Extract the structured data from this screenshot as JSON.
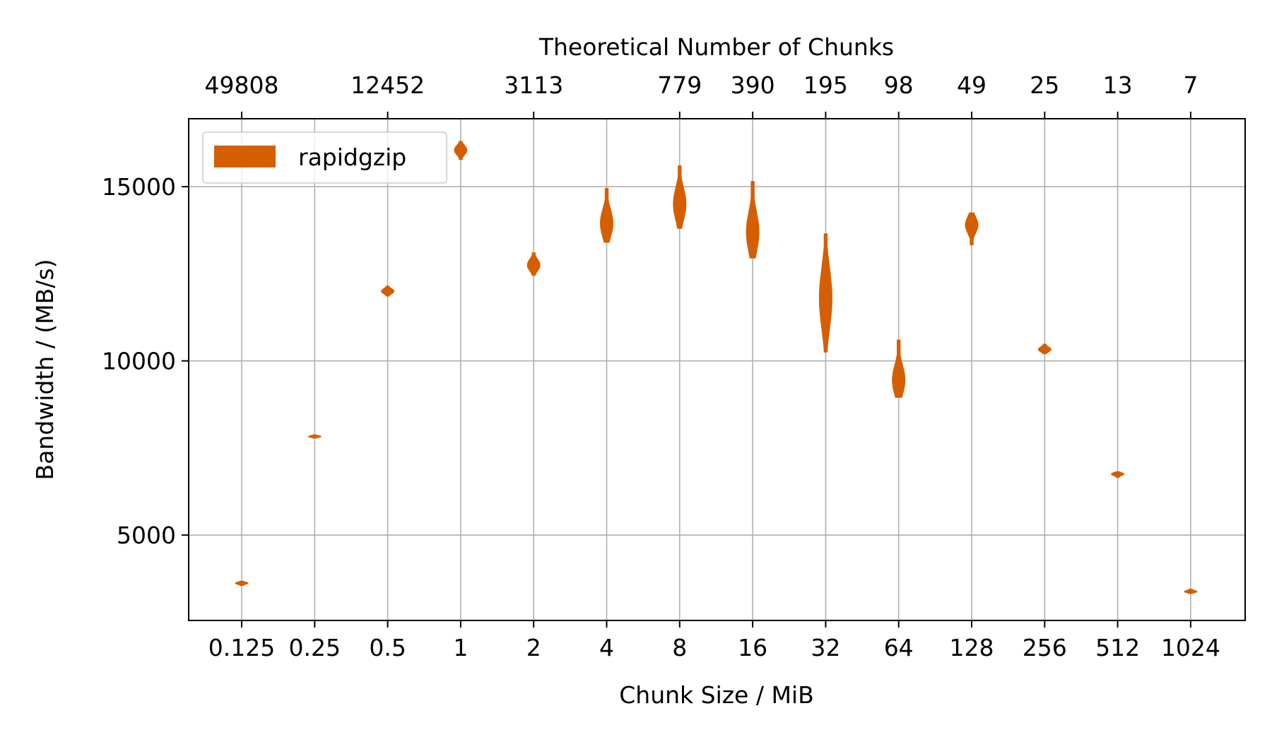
{
  "chart_data": {
    "type": "violin",
    "xlabel": "Chunk Size / MiB",
    "ylabel": "Bandwidth / (MB/s)",
    "top_xlabel": "Theoretical Number of Chunks",
    "x_scale": "log2",
    "x_ticks": [
      "0.125",
      "0.25",
      "0.5",
      "1",
      "2",
      "4",
      "8",
      "16",
      "32",
      "64",
      "128",
      "256",
      "512",
      "1024"
    ],
    "x_top_ticks": [
      {
        "at": "0.125",
        "label": "49808"
      },
      {
        "at": "0.5",
        "label": "12452"
      },
      {
        "at": "2",
        "label": "3113"
      },
      {
        "at": "8",
        "label": "779"
      },
      {
        "at": "16",
        "label": "390"
      },
      {
        "at": "32",
        "label": "195"
      },
      {
        "at": "64",
        "label": "98"
      },
      {
        "at": "128",
        "label": "49"
      },
      {
        "at": "256",
        "label": "25"
      },
      {
        "at": "512",
        "label": "13"
      },
      {
        "at": "1024",
        "label": "7"
      }
    ],
    "ylim": [
      2550,
      16950
    ],
    "y_ticks": [
      5000,
      10000,
      15000
    ],
    "grid": true,
    "legend": {
      "position": "top-left",
      "entries": [
        "rapidgzip"
      ]
    },
    "series": [
      {
        "name": "rapidgzip",
        "color": "#d55e00",
        "violins": [
          {
            "x": 0.125,
            "min": 3550,
            "max": 3680,
            "median": 3620
          },
          {
            "x": 0.25,
            "min": 7780,
            "max": 7880,
            "median": 7830
          },
          {
            "x": 0.5,
            "min": 11860,
            "max": 12150,
            "median": 12000
          },
          {
            "x": 1,
            "min": 15780,
            "max": 16300,
            "median": 16050
          },
          {
            "x": 2,
            "min": 12450,
            "max": 13100,
            "median": 12750
          },
          {
            "x": 4,
            "min": 13400,
            "max": 14950,
            "median": 13950
          },
          {
            "x": 8,
            "min": 13800,
            "max": 15600,
            "median": 14500
          },
          {
            "x": 16,
            "min": 12950,
            "max": 15150,
            "median": 13700
          },
          {
            "x": 32,
            "min": 10250,
            "max": 13650,
            "median": 11800
          },
          {
            "x": 64,
            "min": 8950,
            "max": 10600,
            "median": 9450
          },
          {
            "x": 128,
            "min": 13330,
            "max": 14250,
            "median": 13900
          },
          {
            "x": 256,
            "min": 10200,
            "max": 10480,
            "median": 10330
          },
          {
            "x": 512,
            "min": 6650,
            "max": 6820,
            "median": 6750
          },
          {
            "x": 1024,
            "min": 3320,
            "max": 3450,
            "median": 3380
          }
        ]
      }
    ]
  }
}
